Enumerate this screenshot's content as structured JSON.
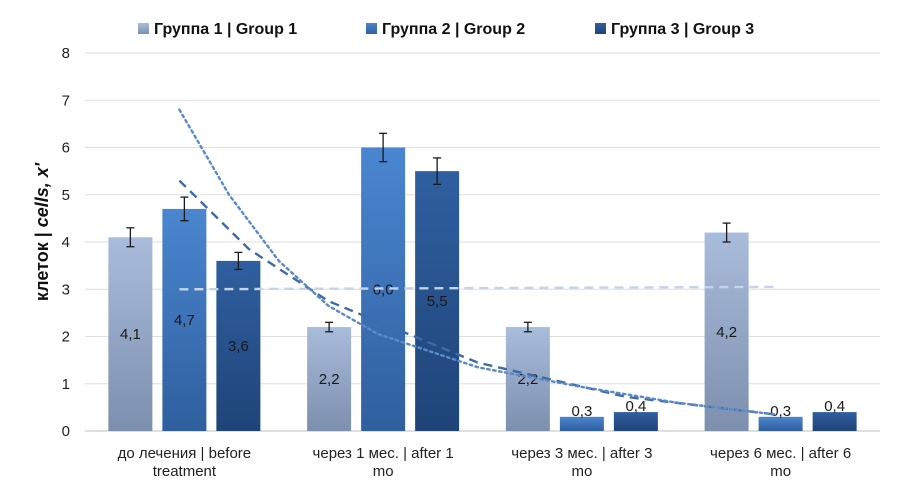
{
  "chart_data": {
    "type": "bar",
    "categories": [
      [
        "до лечения | before",
        "treatment"
      ],
      [
        "через 1 мес. | after 1",
        "mo"
      ],
      [
        "через 3 мес. | after 3",
        "mo"
      ],
      [
        "через 6 мес. | after 6",
        "mo"
      ]
    ],
    "series": [
      {
        "name": "Группа 1 | Group 1",
        "values": [
          4.1,
          2.2,
          2.2,
          4.2
        ],
        "labels": [
          "4,1",
          "2,2",
          "2,2",
          "4,2"
        ],
        "errors": [
          0.2,
          0.1,
          0.1,
          0.2
        ],
        "color_top": "#a9bcdc",
        "color_bottom": "#7d8fae"
      },
      {
        "name": "Группа 2 | Group 2",
        "values": [
          4.7,
          6.0,
          0.3,
          0.3
        ],
        "labels": [
          "4,7",
          "6,0",
          "0,3",
          "0,3"
        ],
        "errors": [
          0.25,
          0.3,
          0,
          0
        ],
        "color_top": "#4a86d0",
        "color_bottom": "#2f5f9e"
      },
      {
        "name": "Группа 3 | Group 3",
        "values": [
          3.6,
          5.5,
          0.4,
          0.4
        ],
        "labels": [
          "3,6",
          "5,5",
          "0,4",
          "0,4"
        ],
        "errors": [
          0.18,
          0.28,
          0,
          0
        ],
        "color_top": "#2f5fa0",
        "color_bottom": "#1f4478"
      }
    ],
    "ylabel_parts": [
      "клеток | ",
      "cells, x'"
    ],
    "ylim": [
      0,
      8
    ],
    "yticks": [
      "0",
      "1",
      "2",
      "3",
      "4",
      "5",
      "6",
      "7",
      "8"
    ],
    "legend_position": "top",
    "grid": true,
    "trendlines": [
      {
        "style": "dashed",
        "color": "#c5d3e8",
        "points": [
          [
            0,
            3.0
          ],
          [
            3,
            3.05
          ]
        ]
      },
      {
        "style": "dashed",
        "color": "#3f6aa6",
        "points": [
          [
            0,
            5.3
          ],
          [
            0.35,
            3.85
          ],
          [
            0.75,
            2.75
          ],
          [
            1.5,
            1.45
          ],
          [
            2.25,
            0.72
          ],
          [
            3,
            0.35
          ]
        ]
      },
      {
        "style": "dotted",
        "color": "#5a8ac8",
        "points": [
          [
            0,
            6.8
          ],
          [
            0.25,
            5.0
          ],
          [
            0.5,
            3.6
          ],
          [
            0.75,
            2.65
          ],
          [
            1,
            2.05
          ],
          [
            1.5,
            1.35
          ],
          [
            2,
            0.95
          ],
          [
            2.5,
            0.6
          ],
          [
            3,
            0.35
          ]
        ]
      }
    ]
  }
}
